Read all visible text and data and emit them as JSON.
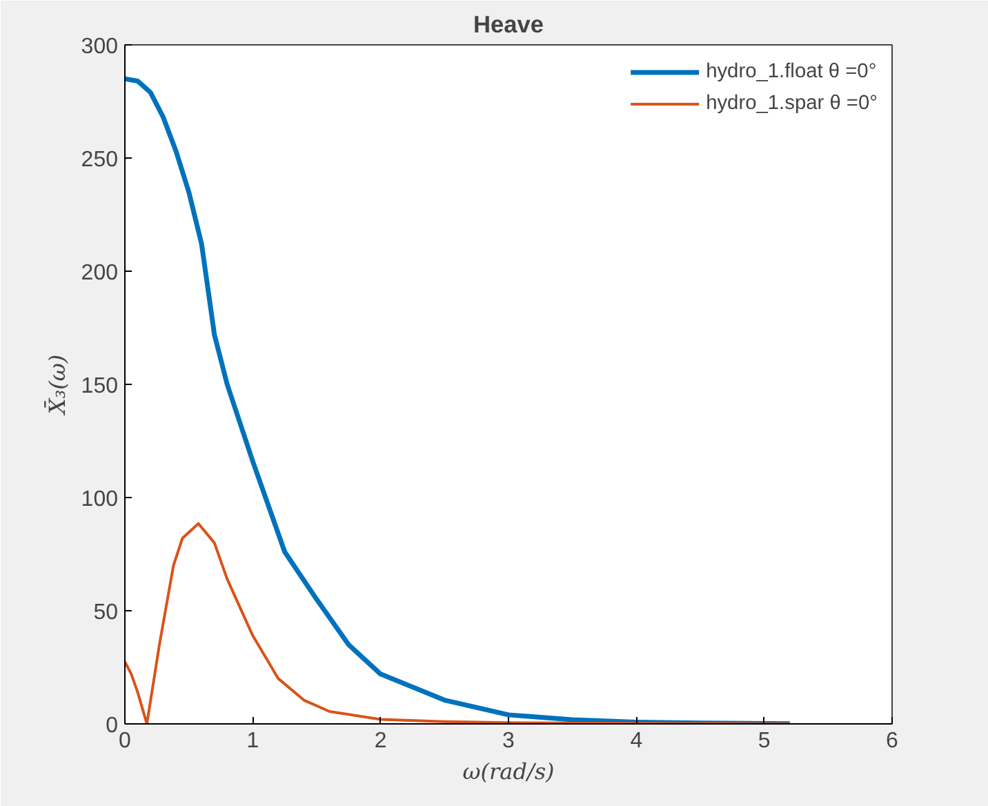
{
  "chart_data": {
    "type": "line",
    "title": "Heave",
    "xlabel": "ω(rad/s)",
    "ylabel": "X̄₃(ω)",
    "xlim": [
      0,
      6
    ],
    "ylim": [
      0,
      300
    ],
    "xticks": [
      0,
      1,
      2,
      3,
      4,
      5,
      6
    ],
    "yticks": [
      0,
      50,
      100,
      150,
      200,
      250,
      300
    ],
    "grid": false,
    "legend": "top right",
    "series": [
      {
        "name": "hydro_1.float θ =0°",
        "color": "#0072bd",
        "x": [
          0,
          0.1,
          0.2,
          0.3,
          0.4,
          0.5,
          0.6,
          0.7,
          0.8,
          0.9,
          1.0,
          1.1,
          1.25,
          1.5,
          1.75,
          2.0,
          2.5,
          3.0,
          3.5,
          4.0,
          4.5,
          5.2
        ],
        "values": [
          285,
          284,
          279,
          268,
          253,
          235,
          212,
          172,
          150,
          133,
          116,
          100,
          76,
          55,
          35,
          22,
          10.5,
          4,
          1.8,
          0.8,
          0.4,
          0.1
        ]
      },
      {
        "name": "hydro_1.spar θ =0°",
        "color": "#d95319",
        "x": [
          0,
          0.05,
          0.1,
          0.172,
          0.27,
          0.38,
          0.45,
          0.575,
          0.7,
          0.8,
          1.0,
          1.2,
          1.4,
          1.6,
          2.0,
          2.5,
          3.0,
          4.0,
          5.2
        ],
        "values": [
          27.5,
          22,
          14,
          0,
          35,
          70,
          82,
          88.5,
          80,
          64,
          39,
          20,
          10.5,
          5.5,
          2,
          1,
          0.5,
          0.2,
          0
        ]
      }
    ]
  }
}
